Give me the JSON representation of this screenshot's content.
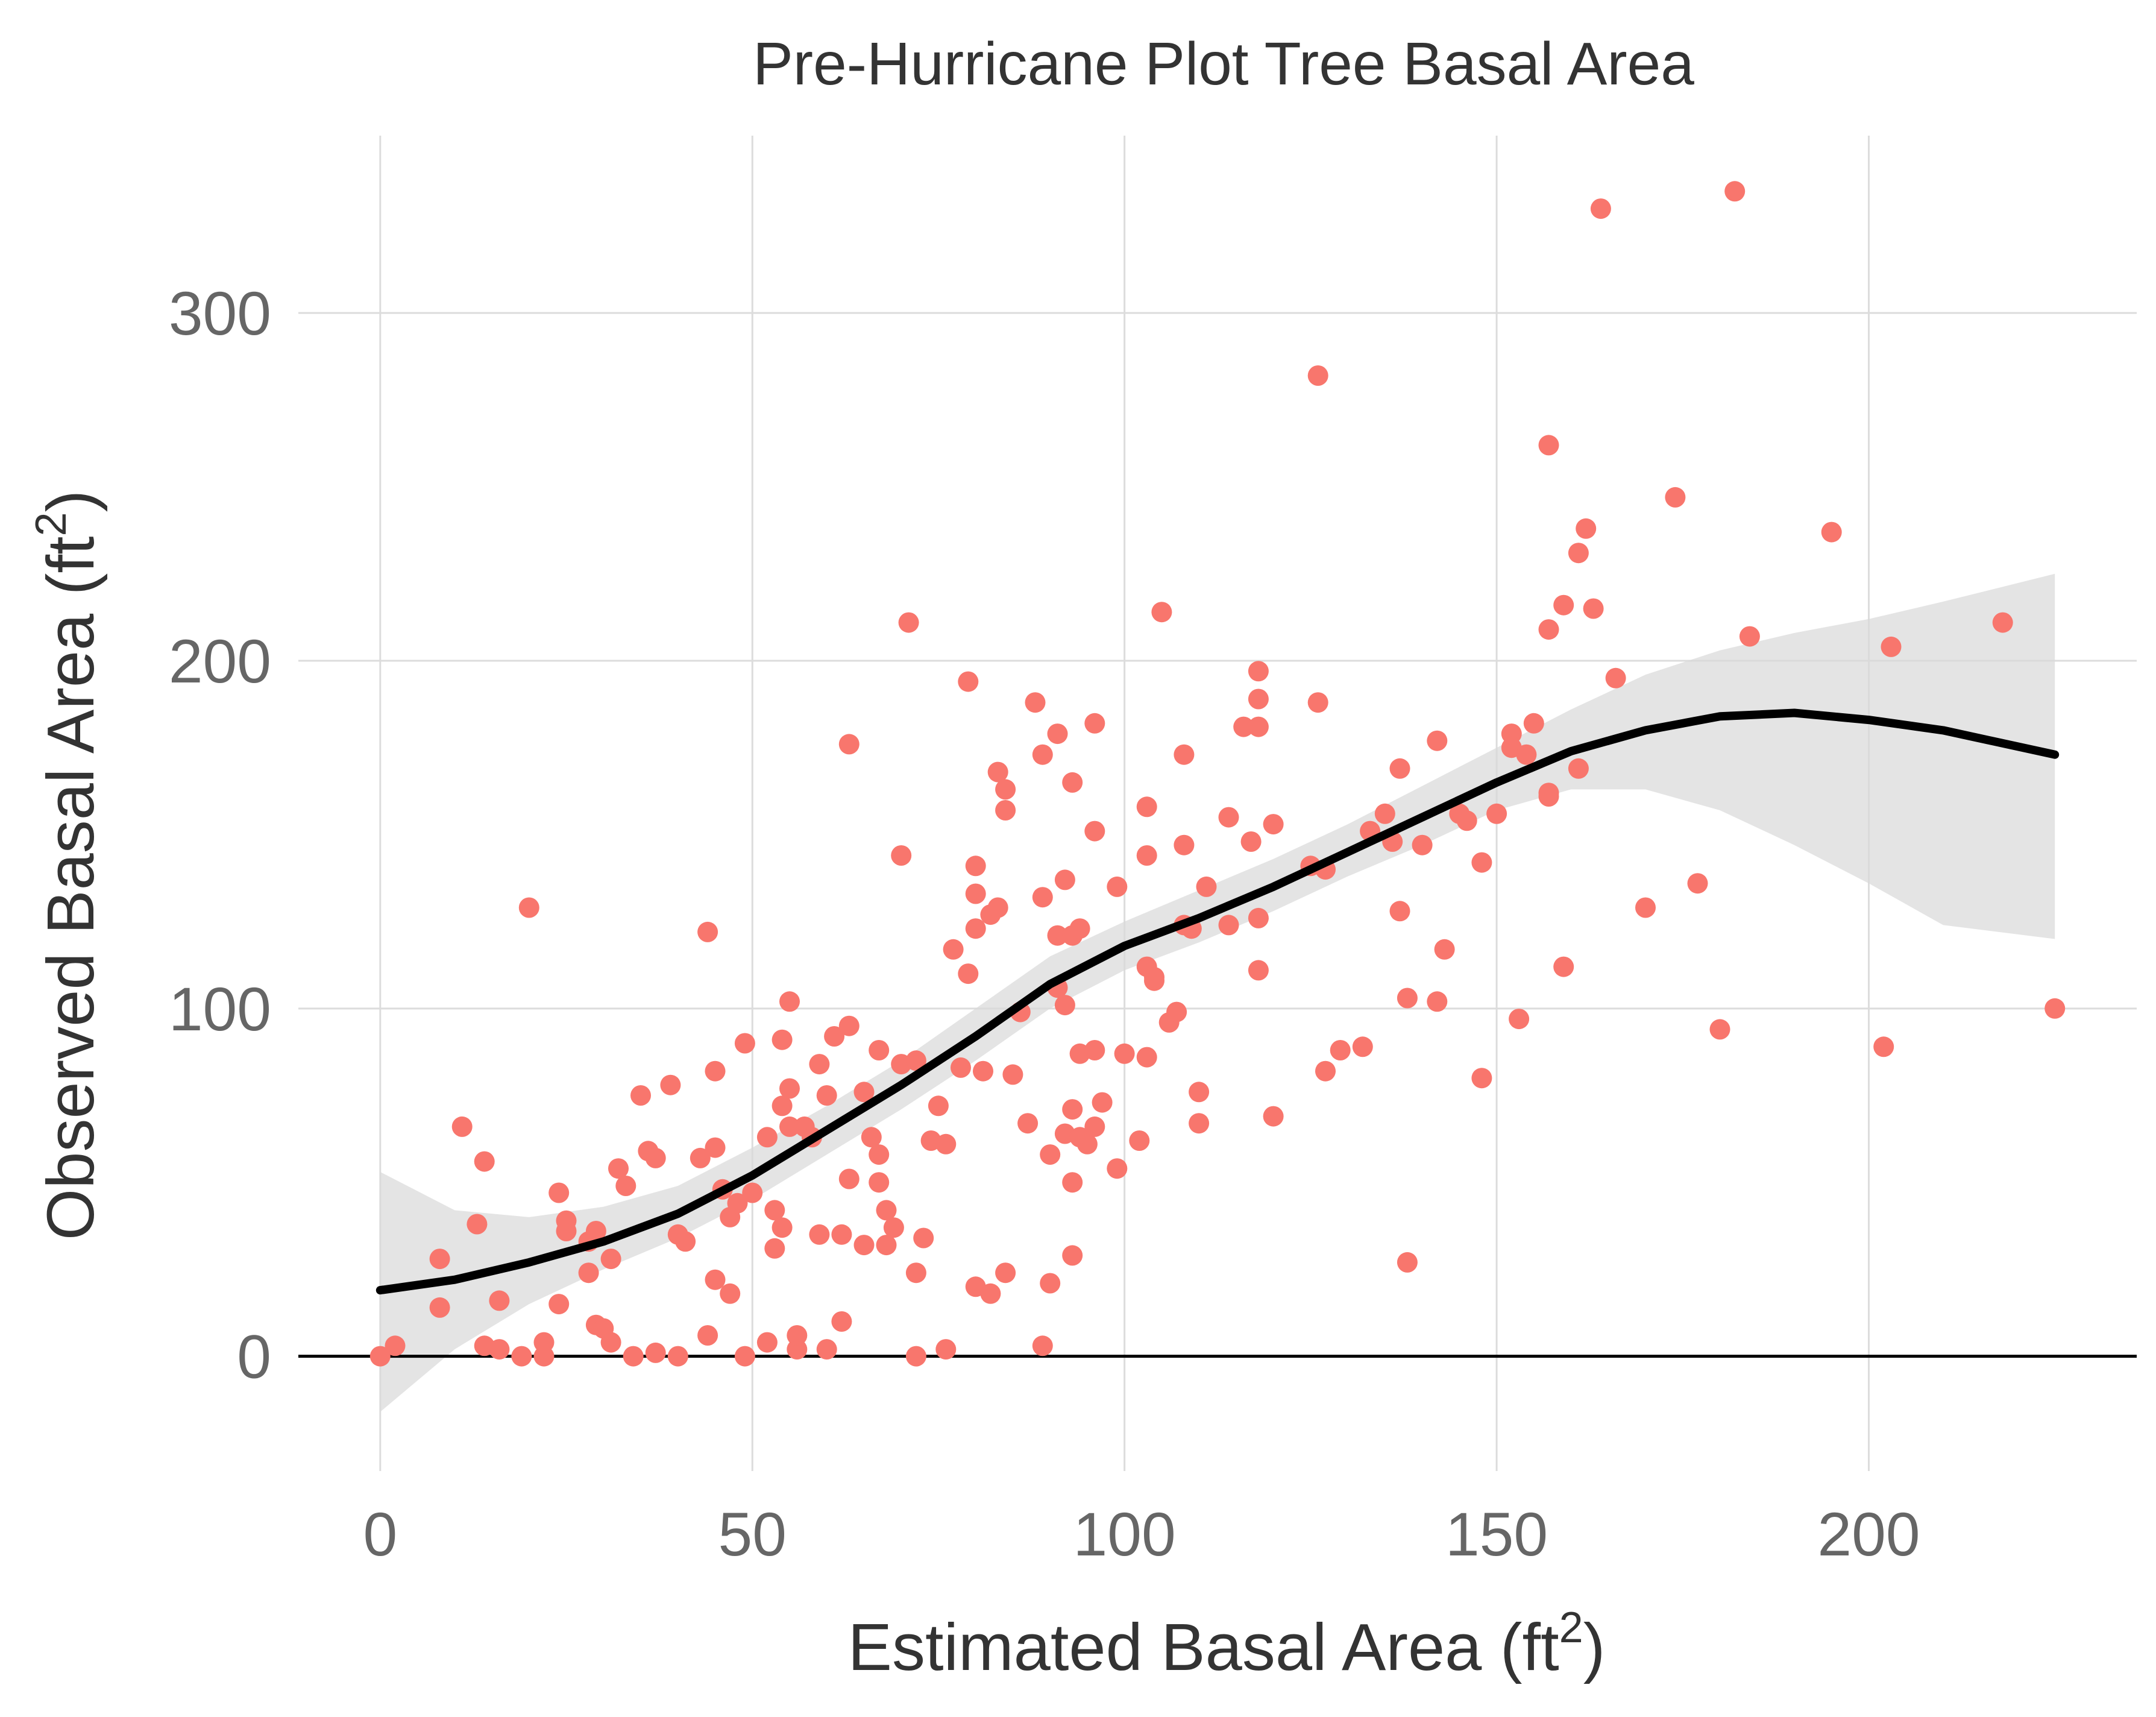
{
  "chart_data": {
    "type": "scatter",
    "title": "Pre-Hurricane Plot Tree Basal Area",
    "xlabel": "Estimated Basal Area (ft",
    "xlabel_sup": "2",
    "xlabel_end": ")",
    "ylabel": "Observed Basal Area (ft",
    "ylabel_sup": "2",
    "ylabel_end": ")",
    "xlim": [
      -11,
      236
    ],
    "ylim": [
      -33,
      351
    ],
    "x_ticks": [
      0,
      50,
      100,
      150,
      200
    ],
    "y_ticks": [
      0,
      100,
      200,
      300
    ],
    "grid": true,
    "colors": {
      "points": "#f8766d",
      "smooth": "#000000",
      "band": "#d9d9d9"
    },
    "reference_line_y": 0,
    "points": [
      [
        0,
        0
      ],
      [
        2,
        3
      ],
      [
        8,
        28
      ],
      [
        8,
        14
      ],
      [
        11,
        66
      ],
      [
        13,
        38
      ],
      [
        14,
        56
      ],
      [
        14,
        3
      ],
      [
        16,
        16
      ],
      [
        16,
        2
      ],
      [
        19,
        0
      ],
      [
        20,
        129
      ],
      [
        22,
        4
      ],
      [
        22,
        0
      ],
      [
        24,
        47
      ],
      [
        24,
        15
      ],
      [
        25,
        36
      ],
      [
        25,
        39
      ],
      [
        28,
        33
      ],
      [
        28,
        24
      ],
      [
        29,
        9
      ],
      [
        29,
        36
      ],
      [
        30,
        8
      ],
      [
        31,
        28
      ],
      [
        31,
        4
      ],
      [
        32,
        54
      ],
      [
        33,
        49
      ],
      [
        34,
        0
      ],
      [
        35,
        75
      ],
      [
        36,
        59
      ],
      [
        37,
        57
      ],
      [
        37,
        1
      ],
      [
        39,
        78
      ],
      [
        40,
        0
      ],
      [
        40,
        35
      ],
      [
        41,
        33
      ],
      [
        43,
        57
      ],
      [
        44,
        122
      ],
      [
        44,
        6
      ],
      [
        45,
        82
      ],
      [
        45,
        60
      ],
      [
        46,
        48
      ],
      [
        45,
        22
      ],
      [
        47,
        18
      ],
      [
        47,
        40
      ],
      [
        48,
        44
      ],
      [
        49,
        0
      ],
      [
        49,
        90
      ],
      [
        50,
        47
      ],
      [
        52,
        63
      ],
      [
        52,
        4
      ],
      [
        53,
        42
      ],
      [
        53,
        31
      ],
      [
        54,
        37
      ],
      [
        54,
        91
      ],
      [
        54,
        72
      ],
      [
        55,
        66
      ],
      [
        55,
        77
      ],
      [
        55,
        102
      ],
      [
        56,
        2
      ],
      [
        56,
        6
      ],
      [
        57,
        66
      ],
      [
        58,
        63
      ],
      [
        59,
        35
      ],
      [
        59,
        84
      ],
      [
        60,
        75
      ],
      [
        60,
        2
      ],
      [
        61,
        92
      ],
      [
        62,
        35
      ],
      [
        62,
        10
      ],
      [
        63,
        176
      ],
      [
        63,
        95
      ],
      [
        63,
        51
      ],
      [
        65,
        76
      ],
      [
        65,
        32
      ],
      [
        66,
        63
      ],
      [
        67,
        88
      ],
      [
        67,
        58
      ],
      [
        67,
        50
      ],
      [
        68,
        42
      ],
      [
        68,
        32
      ],
      [
        69,
        37
      ],
      [
        70,
        144
      ],
      [
        70,
        84
      ],
      [
        71,
        211
      ],
      [
        72,
        85
      ],
      [
        72,
        24
      ],
      [
        72,
        0
      ],
      [
        73,
        34
      ],
      [
        74,
        62
      ],
      [
        75,
        72
      ],
      [
        76,
        61
      ],
      [
        76,
        2
      ],
      [
        77,
        117
      ],
      [
        78,
        83
      ],
      [
        79,
        194
      ],
      [
        79,
        110
      ],
      [
        80,
        20
      ],
      [
        80,
        133
      ],
      [
        80,
        123
      ],
      [
        80,
        141
      ],
      [
        81,
        82
      ],
      [
        82,
        127
      ],
      [
        82,
        18
      ],
      [
        83,
        129
      ],
      [
        83,
        168
      ],
      [
        84,
        163
      ],
      [
        84,
        157
      ],
      [
        84,
        24
      ],
      [
        85,
        81
      ],
      [
        86,
        99
      ],
      [
        87,
        67
      ],
      [
        88,
        188
      ],
      [
        89,
        173
      ],
      [
        89,
        132
      ],
      [
        89,
        3
      ],
      [
        90,
        21
      ],
      [
        90,
        58
      ],
      [
        91,
        179
      ],
      [
        91,
        121
      ],
      [
        91,
        106
      ],
      [
        92,
        137
      ],
      [
        92,
        64
      ],
      [
        92,
        101
      ],
      [
        93,
        165
      ],
      [
        93,
        121
      ],
      [
        93,
        71
      ],
      [
        93,
        50
      ],
      [
        93,
        29
      ],
      [
        94,
        123
      ],
      [
        94,
        63
      ],
      [
        94,
        87
      ],
      [
        95,
        61
      ],
      [
        96,
        182
      ],
      [
        96,
        151
      ],
      [
        96,
        88
      ],
      [
        96,
        66
      ],
      [
        97,
        73
      ],
      [
        99,
        54
      ],
      [
        99,
        135
      ],
      [
        100,
        87
      ],
      [
        102,
        62
      ],
      [
        103,
        144
      ],
      [
        103,
        112
      ],
      [
        103,
        158
      ],
      [
        103,
        86
      ],
      [
        104,
        108
      ],
      [
        104,
        109
      ],
      [
        105,
        214
      ],
      [
        106,
        96
      ],
      [
        107,
        99
      ],
      [
        108,
        147
      ],
      [
        108,
        124
      ],
      [
        108,
        173
      ],
      [
        109,
        123
      ],
      [
        110,
        76
      ],
      [
        110,
        67
      ],
      [
        111,
        135
      ],
      [
        114,
        155
      ],
      [
        114,
        124
      ],
      [
        116,
        181
      ],
      [
        117,
        148
      ],
      [
        118,
        126
      ],
      [
        118,
        197
      ],
      [
        118,
        189
      ],
      [
        118,
        181
      ],
      [
        118,
        111
      ],
      [
        120,
        153
      ],
      [
        120,
        69
      ],
      [
        125,
        141
      ],
      [
        126,
        188
      ],
      [
        126,
        282
      ],
      [
        127,
        82
      ],
      [
        127,
        140
      ],
      [
        129,
        88
      ],
      [
        132,
        89
      ],
      [
        133,
        151
      ],
      [
        135,
        156
      ],
      [
        136,
        148
      ],
      [
        137,
        128
      ],
      [
        137,
        169
      ],
      [
        138,
        103
      ],
      [
        138,
        27
      ],
      [
        140,
        147
      ],
      [
        142,
        177
      ],
      [
        142,
        102
      ],
      [
        143,
        117
      ],
      [
        145,
        156
      ],
      [
        146,
        154
      ],
      [
        148,
        142
      ],
      [
        148,
        80
      ],
      [
        150,
        156
      ],
      [
        152,
        175
      ],
      [
        152,
        179
      ],
      [
        153,
        97
      ],
      [
        154,
        173
      ],
      [
        155,
        182
      ],
      [
        157,
        262
      ],
      [
        157,
        209
      ],
      [
        157,
        162
      ],
      [
        157,
        161
      ],
      [
        159,
        216
      ],
      [
        159,
        112
      ],
      [
        161,
        169
      ],
      [
        161,
        231
      ],
      [
        162,
        238
      ],
      [
        163,
        215
      ],
      [
        164,
        330
      ],
      [
        166,
        195
      ],
      [
        170,
        129
      ],
      [
        174,
        247
      ],
      [
        177,
        136
      ],
      [
        180,
        94
      ],
      [
        182,
        335
      ],
      [
        184,
        207
      ],
      [
        195,
        237
      ],
      [
        202,
        89
      ],
      [
        203,
        204
      ],
      [
        218,
        211
      ],
      [
        225,
        100
      ]
    ],
    "smooth_line": {
      "x": [
        0,
        10,
        20,
        30,
        40,
        50,
        60,
        70,
        80,
        90,
        100,
        110,
        120,
        130,
        140,
        150,
        160,
        170,
        180,
        190,
        200,
        210,
        225
      ],
      "y": [
        19,
        22,
        27,
        33,
        41,
        52,
        65,
        78,
        92,
        107,
        118,
        126,
        135,
        145,
        155,
        165,
        174,
        180,
        184,
        185,
        183,
        180,
        173
      ]
    },
    "confidence_band": {
      "x": [
        0,
        10,
        20,
        30,
        40,
        50,
        60,
        70,
        80,
        90,
        100,
        110,
        120,
        130,
        140,
        150,
        160,
        170,
        180,
        190,
        200,
        210,
        225
      ],
      "lower": [
        -16,
        2,
        15,
        25,
        34,
        45,
        58,
        71,
        85,
        100,
        111,
        119,
        128,
        138,
        147,
        157,
        163,
        163,
        157,
        147,
        136,
        124,
        120
      ],
      "upper": [
        53,
        42,
        40,
        43,
        49,
        60,
        72,
        85,
        100,
        115,
        125,
        134,
        143,
        153,
        164,
        175,
        186,
        196,
        203,
        208,
        212,
        217,
        225
      ]
    }
  }
}
